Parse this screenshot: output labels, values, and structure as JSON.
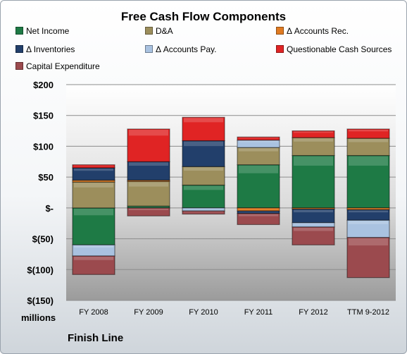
{
  "chart_data": {
    "type": "bar",
    "stacked": true,
    "title": "Free Cash Flow Components",
    "units_label": "millions",
    "footer": "Finish Line",
    "categories": [
      "FY 2008",
      "FY 2009",
      "FY 2010",
      "FY 2011",
      "FY 2012",
      "TTM 9-2012"
    ],
    "y_ticks": [
      "$200",
      "$150",
      "$100",
      "$50",
      "$-",
      "$(50)",
      "$(100)",
      "$(150)"
    ],
    "ylim": [
      -150,
      200
    ],
    "grid": true,
    "legend_position": "top",
    "series": [
      {
        "name": "Net Income",
        "color": "#1e7a45",
        "values": [
          -60,
          3,
          37,
          70,
          85,
          85
        ]
      },
      {
        "name": "D&A",
        "color": "#9c8e5c",
        "values": [
          42,
          40,
          30,
          28,
          29,
          28
        ]
      },
      {
        "name": "Δ Accounts Rec.",
        "color": "#e07b22",
        "values": [
          3,
          2,
          0,
          -5,
          -2,
          -3
        ]
      },
      {
        "name": "Δ Inventories",
        "color": "#223f6b",
        "values": [
          20,
          30,
          42,
          -4,
          -22,
          -17
        ]
      },
      {
        "name": "Δ Accounts Pay.",
        "color": "#a9c2e0",
        "values": [
          -18,
          0,
          -5,
          12,
          -7,
          -28
        ]
      },
      {
        "name": "Questionable Cash Sources",
        "color": "#e02424",
        "values": [
          5,
          53,
          38,
          5,
          11,
          15
        ]
      },
      {
        "name": "Capital Expenditure",
        "color": "#9b4a4e",
        "values": [
          -30,
          -13,
          -5,
          -18,
          -29,
          -65
        ]
      }
    ]
  }
}
